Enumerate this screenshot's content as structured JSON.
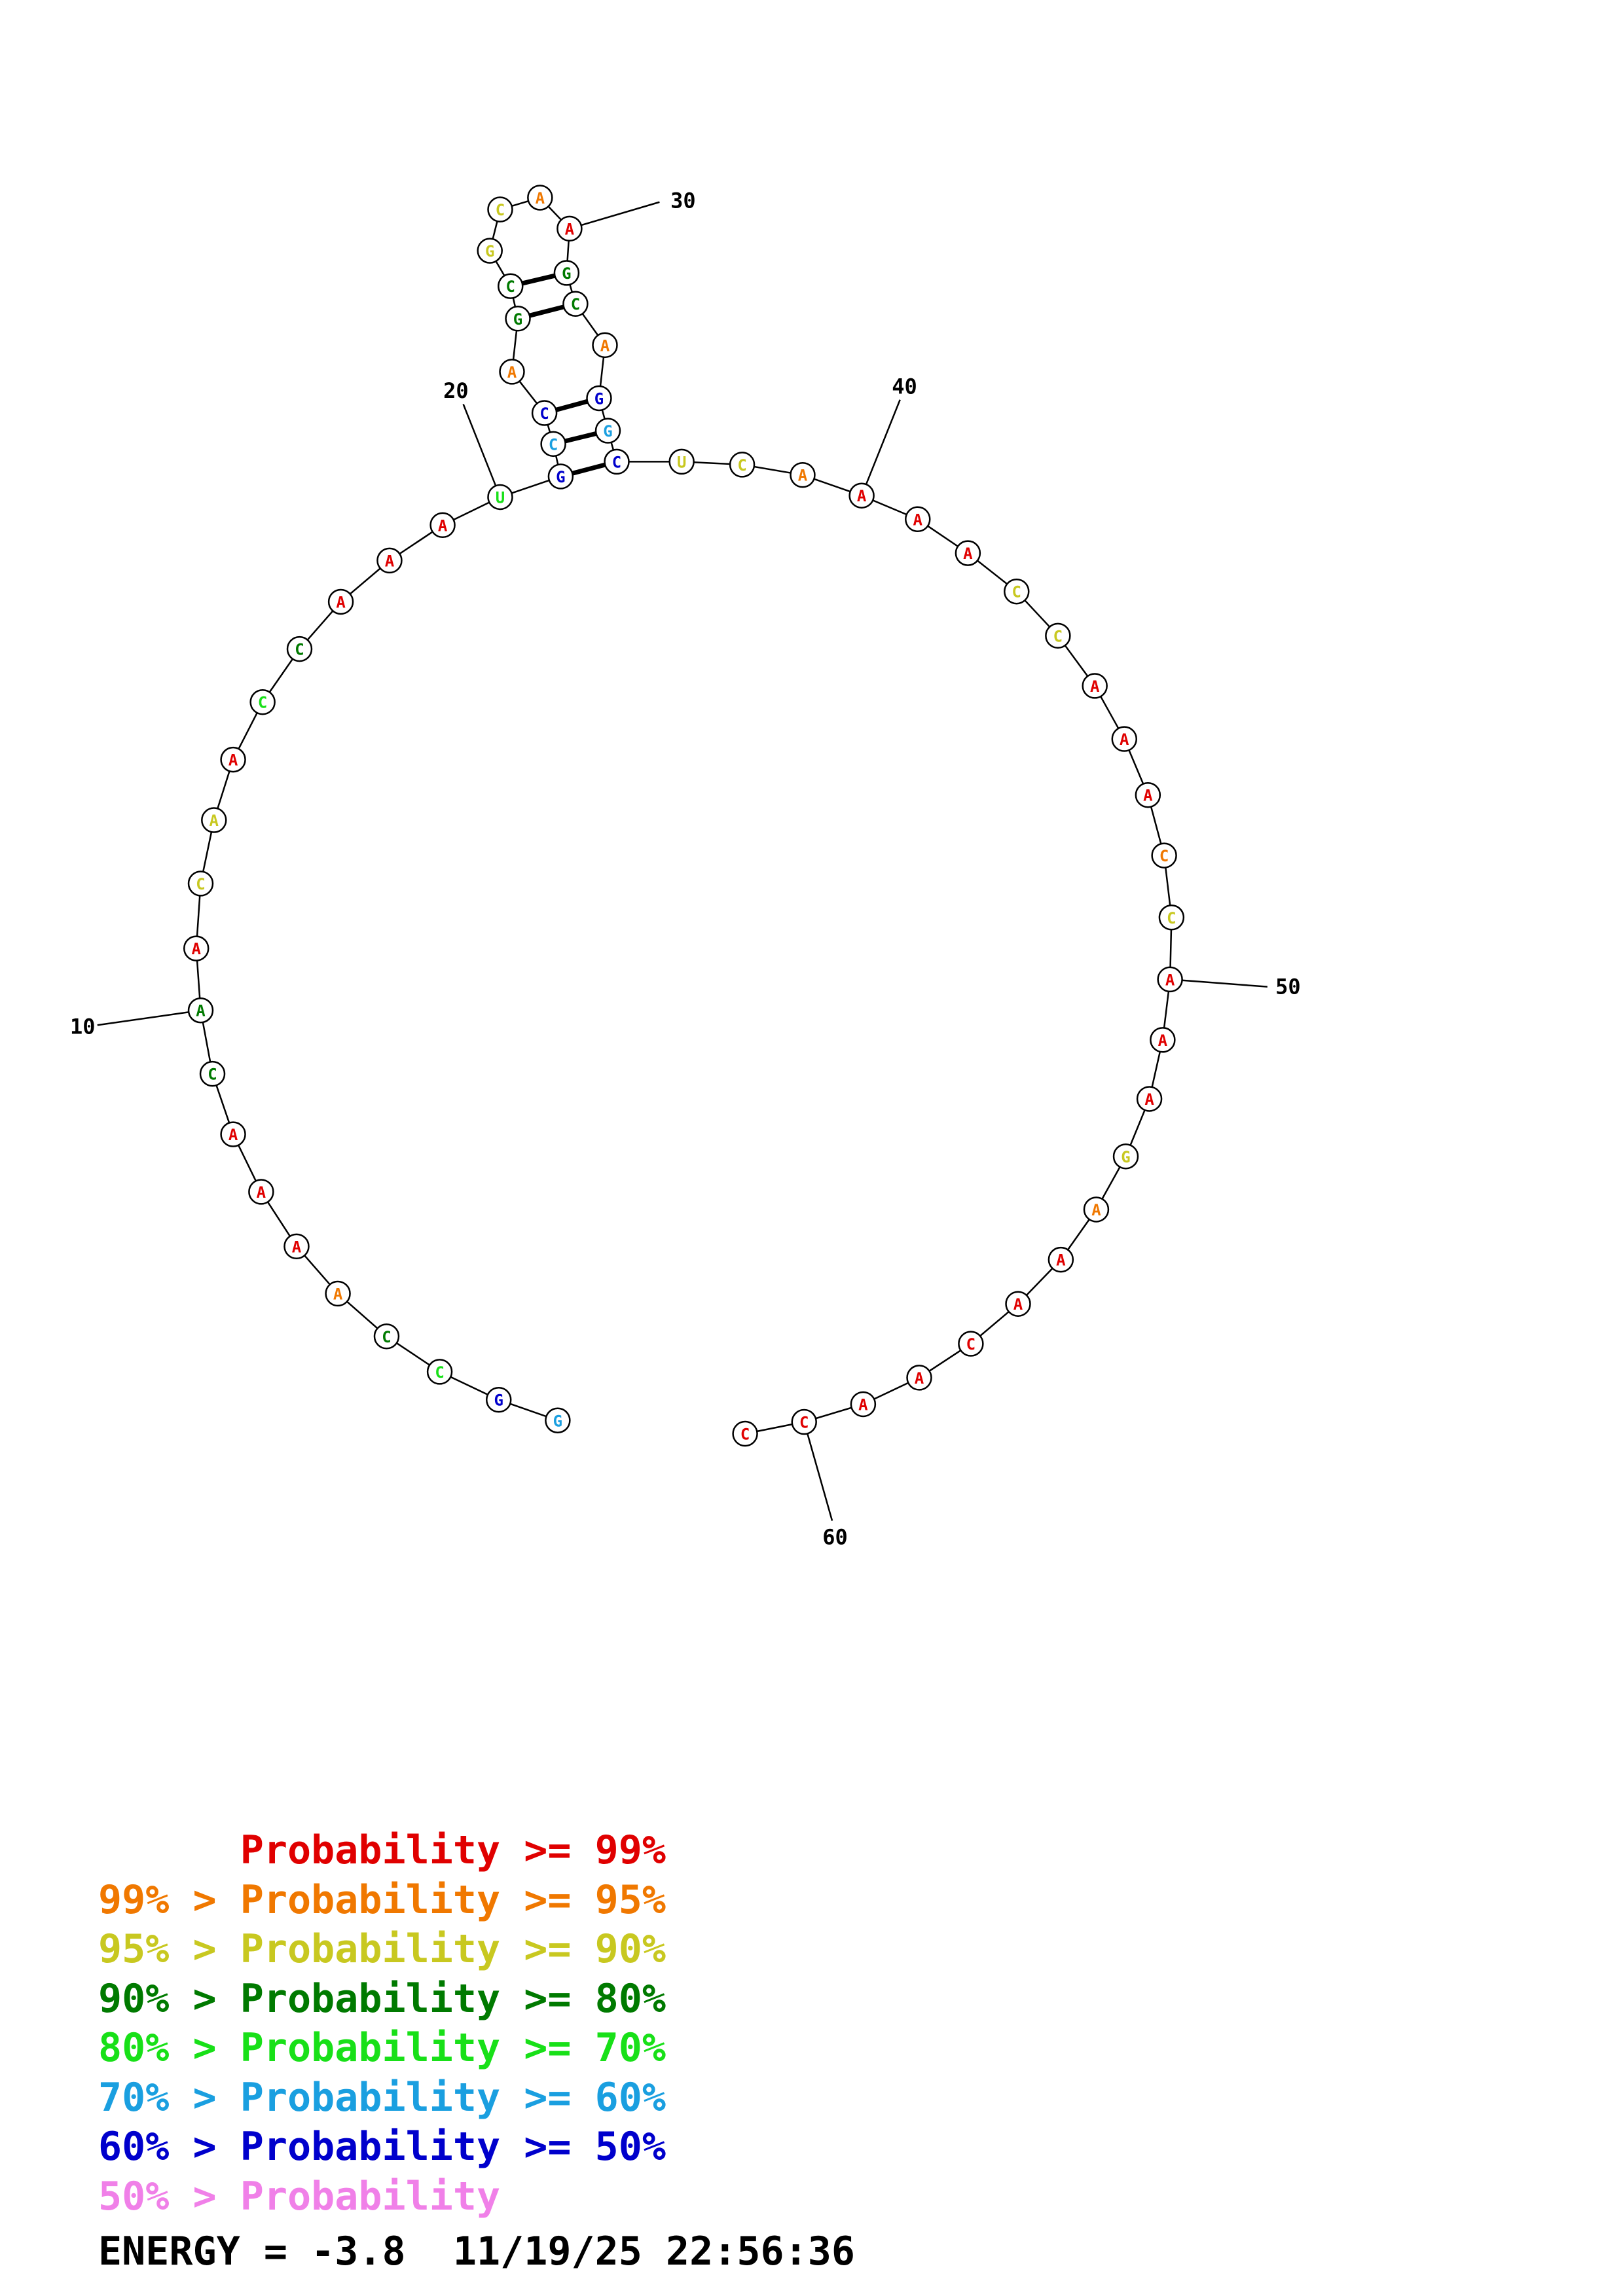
{
  "structure": {
    "nucleotides": [
      {
        "n": 1,
        "base": "G",
        "color": "#1a9fe0"
      },
      {
        "n": 2,
        "base": "G",
        "color": "#0000cc"
      },
      {
        "n": 3,
        "base": "C",
        "color": "#18e018"
      },
      {
        "n": 4,
        "base": "C",
        "color": "#007a00"
      },
      {
        "n": 5,
        "base": "A",
        "color": "#f07800"
      },
      {
        "n": 6,
        "base": "A",
        "color": "#e00000"
      },
      {
        "n": 7,
        "base": "A",
        "color": "#e00000"
      },
      {
        "n": 8,
        "base": "A",
        "color": "#e00000"
      },
      {
        "n": 9,
        "base": "C",
        "color": "#007a00"
      },
      {
        "n": 10,
        "base": "A",
        "color": "#007a00"
      },
      {
        "n": 11,
        "base": "A",
        "color": "#e00000"
      },
      {
        "n": 12,
        "base": "C",
        "color": "#c8c820"
      },
      {
        "n": 13,
        "base": "A",
        "color": "#c8c820"
      },
      {
        "n": 14,
        "base": "A",
        "color": "#e00000"
      },
      {
        "n": 15,
        "base": "C",
        "color": "#18e018"
      },
      {
        "n": 16,
        "base": "C",
        "color": "#007a00"
      },
      {
        "n": 17,
        "base": "A",
        "color": "#e00000"
      },
      {
        "n": 18,
        "base": "A",
        "color": "#e00000"
      },
      {
        "n": 19,
        "base": "A",
        "color": "#e00000"
      },
      {
        "n": 20,
        "base": "U",
        "color": "#18e018"
      },
      {
        "n": 21,
        "base": "G",
        "color": "#0000cc"
      },
      {
        "n": 22,
        "base": "C",
        "color": "#1a9fe0"
      },
      {
        "n": 23,
        "base": "C",
        "color": "#0000cc"
      },
      {
        "n": 24,
        "base": "A",
        "color": "#f07800"
      },
      {
        "n": 25,
        "base": "G",
        "color": "#007a00"
      },
      {
        "n": 26,
        "base": "C",
        "color": "#007a00"
      },
      {
        "n": 27,
        "base": "G",
        "color": "#c8c820"
      },
      {
        "n": 28,
        "base": "C",
        "color": "#c8c820"
      },
      {
        "n": 29,
        "base": "A",
        "color": "#f07800"
      },
      {
        "n": 30,
        "base": "A",
        "color": "#e00000"
      },
      {
        "n": 31,
        "base": "G",
        "color": "#007a00"
      },
      {
        "n": 32,
        "base": "C",
        "color": "#007a00"
      },
      {
        "n": 33,
        "base": "A",
        "color": "#f07800"
      },
      {
        "n": 34,
        "base": "G",
        "color": "#0000cc"
      },
      {
        "n": 35,
        "base": "G",
        "color": "#1a9fe0"
      },
      {
        "n": 36,
        "base": "C",
        "color": "#0000cc"
      },
      {
        "n": 37,
        "base": "U",
        "color": "#c8c820"
      },
      {
        "n": 38,
        "base": "C",
        "color": "#c8c820"
      },
      {
        "n": 39,
        "base": "A",
        "color": "#f07800"
      },
      {
        "n": 40,
        "base": "A",
        "color": "#e00000"
      },
      {
        "n": 41,
        "base": "A",
        "color": "#e00000"
      },
      {
        "n": 42,
        "base": "A",
        "color": "#e00000"
      },
      {
        "n": 43,
        "base": "C",
        "color": "#c8c820"
      },
      {
        "n": 44,
        "base": "C",
        "color": "#c8c820"
      },
      {
        "n": 45,
        "base": "A",
        "color": "#e00000"
      },
      {
        "n": 46,
        "base": "A",
        "color": "#e00000"
      },
      {
        "n": 47,
        "base": "A",
        "color": "#e00000"
      },
      {
        "n": 48,
        "base": "C",
        "color": "#f07800"
      },
      {
        "n": 49,
        "base": "C",
        "color": "#c8c820"
      },
      {
        "n": 50,
        "base": "A",
        "color": "#e00000"
      },
      {
        "n": 51,
        "base": "A",
        "color": "#e00000"
      },
      {
        "n": 52,
        "base": "A",
        "color": "#e00000"
      },
      {
        "n": 53,
        "base": "G",
        "color": "#c8c820"
      },
      {
        "n": 54,
        "base": "A",
        "color": "#f07800"
      },
      {
        "n": 55,
        "base": "A",
        "color": "#e00000"
      },
      {
        "n": 56,
        "base": "A",
        "color": "#e00000"
      },
      {
        "n": 57,
        "base": "C",
        "color": "#e00000"
      },
      {
        "n": 58,
        "base": "A",
        "color": "#e00000"
      },
      {
        "n": 59,
        "base": "A",
        "color": "#e00000"
      },
      {
        "n": 60,
        "base": "C",
        "color": "#e00000"
      },
      {
        "n": 61,
        "base": "C",
        "color": "#e00000"
      }
    ],
    "base_pairs": [
      [
        21,
        36
      ],
      [
        22,
        35
      ],
      [
        23,
        34
      ],
      [
        25,
        32
      ],
      [
        26,
        31
      ]
    ],
    "position_labels": [
      {
        "n": 10,
        "text": "10"
      },
      {
        "n": 20,
        "text": "20"
      },
      {
        "n": 30,
        "text": "30"
      },
      {
        "n": 40,
        "text": "40"
      },
      {
        "n": 50,
        "text": "50"
      },
      {
        "n": 60,
        "text": "60"
      }
    ]
  },
  "legend": [
    {
      "prefix": "",
      "label": "Probability",
      "suffix": ">= 99%",
      "color": "#e00000"
    },
    {
      "prefix": "99% >",
      "label": "Probability",
      "suffix": ">= 95%",
      "color": "#f07800"
    },
    {
      "prefix": "95% >",
      "label": "Probability",
      "suffix": ">= 90%",
      "color": "#c8c820"
    },
    {
      "prefix": "90% >",
      "label": "Probability",
      "suffix": ">= 80%",
      "color": "#007a00"
    },
    {
      "prefix": "80% >",
      "label": "Probability",
      "suffix": ">= 70%",
      "color": "#18e018"
    },
    {
      "prefix": "70% >",
      "label": "Probability",
      "suffix": ">= 60%",
      "color": "#1a9fe0"
    },
    {
      "prefix": "60% >",
      "label": "Probability",
      "suffix": ">= 50%",
      "color": "#0000cc"
    },
    {
      "prefix": "50% >",
      "label": "Probability",
      "suffix": "",
      "color": "#f080e8"
    }
  ],
  "energy_line": "ENERGY = -3.8  11/19/25 22:56:36"
}
